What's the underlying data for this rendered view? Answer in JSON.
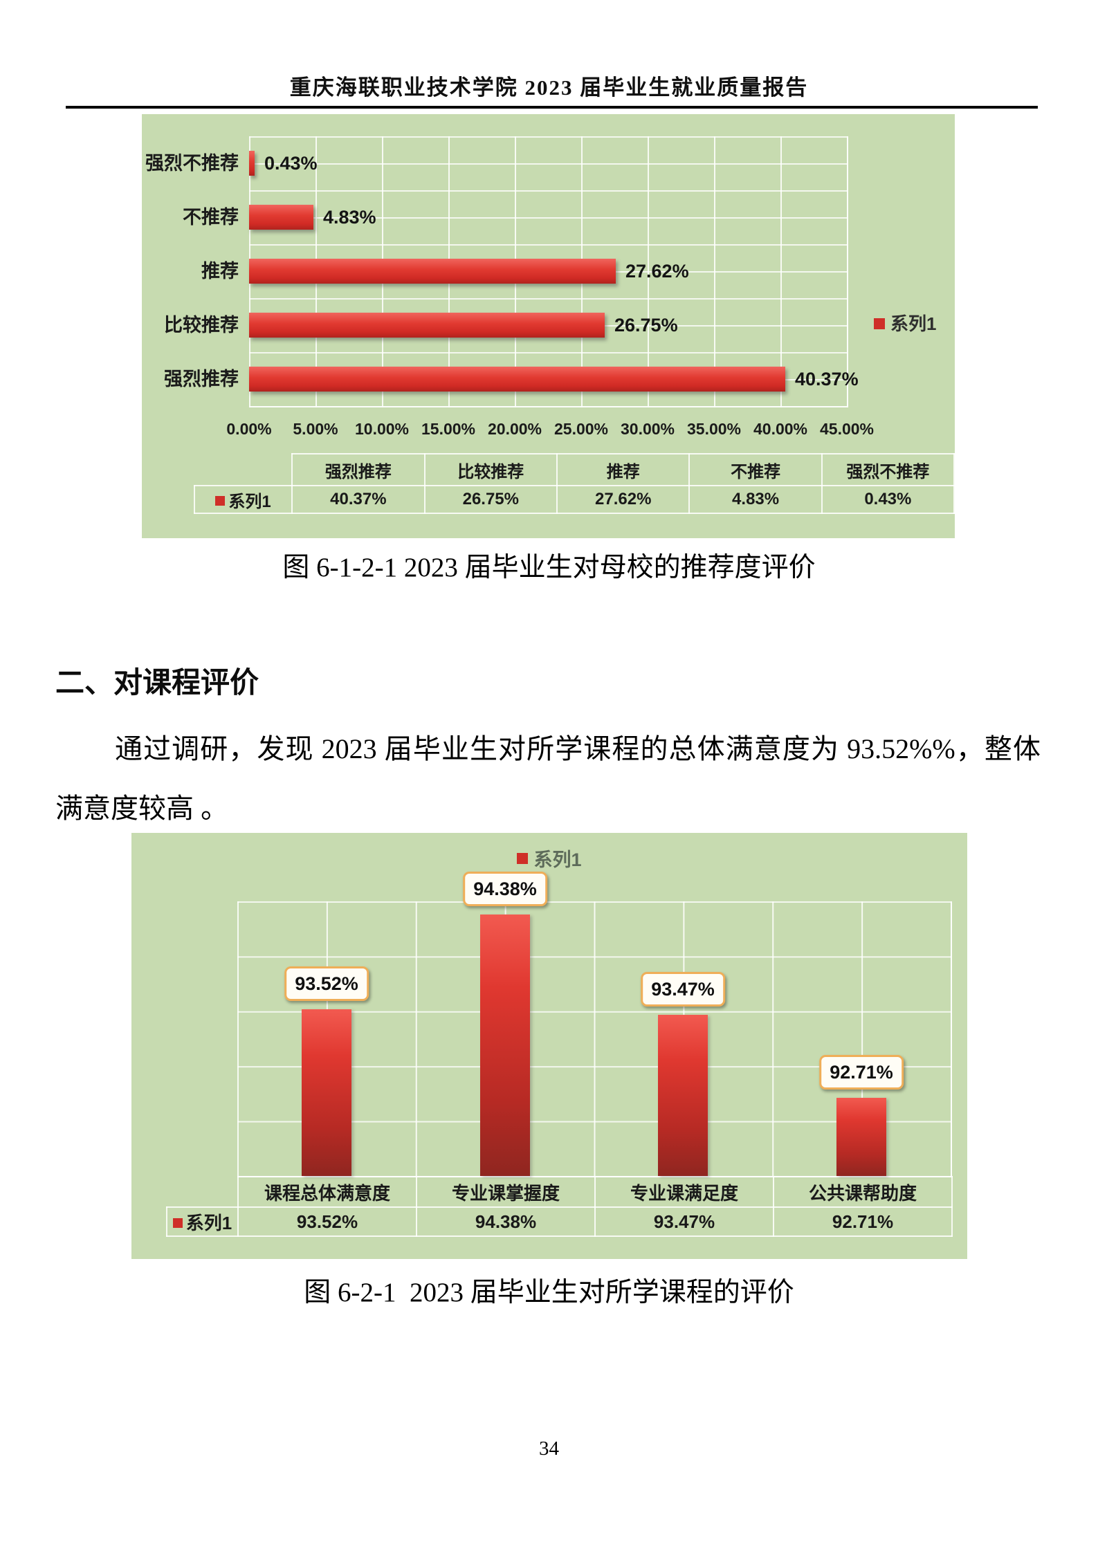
{
  "header": {
    "title": "重庆海联职业技术学院 2023 届毕业生就业质量报告"
  },
  "section": {
    "heading": "二、对课程评价",
    "paragraph": "通过调研，发现 2023 届毕业生对所学课程的总体满意度为 93.52%%，整体满意度较高 。"
  },
  "footer": {
    "page_number": "34"
  },
  "colors": {
    "chart_background": "#c7dbb0",
    "bar_red": "#df342c",
    "legend_key_red": "#cf2f28",
    "data_label_border": "#efae58",
    "grid_line": "#ffffff"
  },
  "chart_data": [
    {
      "type": "bar",
      "orientation": "horizontal",
      "series_name": "系列1",
      "categories": [
        "强烈不推荐",
        "不推荐",
        "推荐",
        "比较推荐",
        "强烈推荐"
      ],
      "values": [
        0.43,
        4.83,
        27.62,
        26.75,
        40.37
      ],
      "value_labels": [
        "0.43%",
        "4.83%",
        "27.62%",
        "26.75%",
        "40.37%"
      ],
      "x_ticks": [
        "0.00%",
        "5.00%",
        "10.00%",
        "15.00%",
        "20.00%",
        "25.00%",
        "30.00%",
        "35.00%",
        "40.00%",
        "45.00%"
      ],
      "xlim": [
        0,
        45
      ],
      "grid": true,
      "legend_position": "right",
      "data_table": {
        "row_header": "系列1",
        "columns": [
          "强烈推荐",
          "比较推荐",
          "推荐",
          "不推荐",
          "强烈不推荐"
        ],
        "values": [
          "40.37%",
          "26.75%",
          "27.62%",
          "4.83%",
          "0.43%"
        ]
      },
      "caption": "图 6-1-2-1 2023 届毕业生对母校的推荐度评价"
    },
    {
      "type": "bar",
      "orientation": "vertical",
      "series_name": "系列1",
      "categories": [
        "课程总体满意度",
        "专业课掌握度",
        "专业课满足度",
        "公共课帮助度"
      ],
      "values": [
        93.52,
        94.38,
        93.47,
        92.71
      ],
      "value_labels": [
        "93.52%",
        "94.38%",
        "93.47%",
        "92.71%"
      ],
      "ylim": [
        92,
        94.5
      ],
      "grid": true,
      "legend_position": "top",
      "data_table": {
        "row_header": "系列1",
        "columns": [
          "课程总体满意度",
          "专业课掌握度",
          "专业课满足度",
          "公共课帮助度"
        ],
        "values": [
          "93.52%",
          "94.38%",
          "93.47%",
          "92.71%"
        ]
      },
      "caption": "图 6-2-1  2023 届毕业生对所学课程的评价"
    }
  ]
}
